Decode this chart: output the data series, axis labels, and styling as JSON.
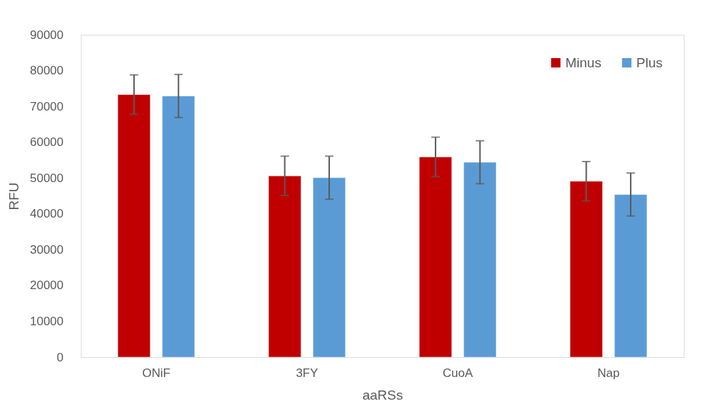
{
  "chart_data": {
    "type": "bar",
    "xlabel": "aaRSs",
    "ylabel": "RFU",
    "categories": [
      "ONiF",
      "3FY",
      "CuoA",
      "Nap"
    ],
    "series": [
      {
        "name": "Minus",
        "color": "#c00000",
        "values": [
          73300,
          50600,
          55900,
          49100
        ],
        "errors": [
          5500,
          5500,
          5500,
          5500
        ]
      },
      {
        "name": "Plus",
        "color": "#5b9bd5",
        "values": [
          72900,
          50100,
          54400,
          45400
        ],
        "errors": [
          6000,
          6000,
          6000,
          6000
        ]
      }
    ],
    "ylim": [
      0,
      90000
    ],
    "yticks": [
      0,
      10000,
      20000,
      30000,
      40000,
      50000,
      60000,
      70000,
      80000,
      90000
    ],
    "grid": false,
    "legend": "top right"
  }
}
